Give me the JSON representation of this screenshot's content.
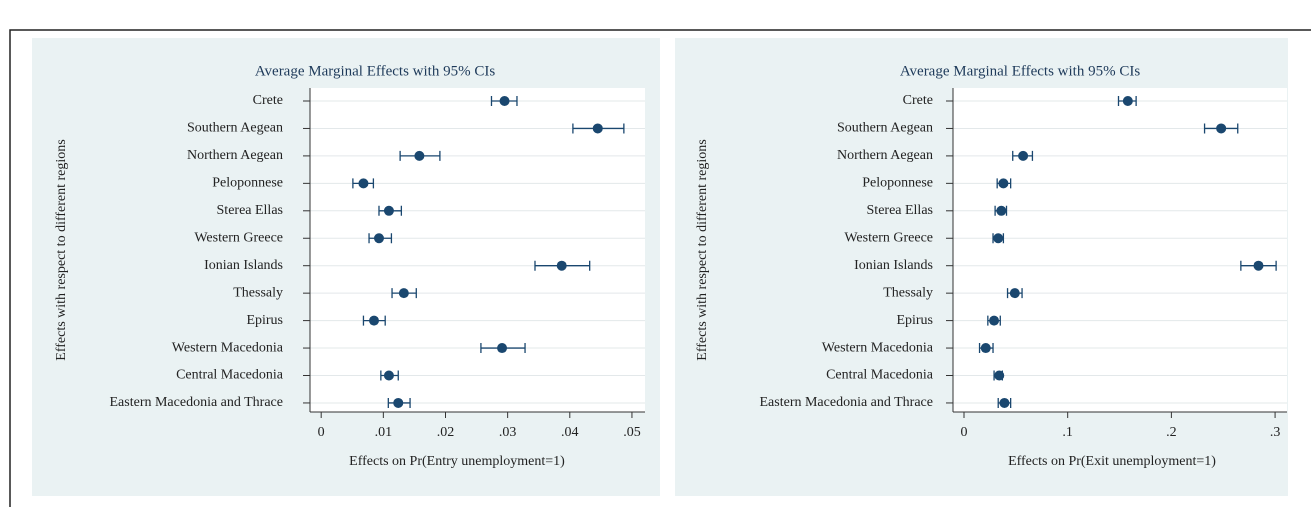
{
  "chart_data": [
    {
      "type": "errorbar",
      "title": "Average Marginal Effects with 95% CIs",
      "xlabel": "Effects on Pr(Entry unemployment=1)",
      "ylabel": "Effects with respect to different regions",
      "categories": [
        "Crete",
        "Southern Aegean",
        "Northern Aegean",
        "Peloponnese",
        "Sterea Ellas",
        "Western Greece",
        "Ionian Islands",
        "Thessaly",
        "Epirus",
        "Western Macedonia",
        "Central Macedonia",
        "Eastern Macedonia and Thrace"
      ],
      "values": [
        0.0295,
        0.0445,
        0.0158,
        0.0068,
        0.0109,
        0.0093,
        0.0387,
        0.0133,
        0.0085,
        0.0291,
        0.0109,
        0.0124
      ],
      "ci_low": [
        0.0274,
        0.0405,
        0.0127,
        0.0051,
        0.0093,
        0.0077,
        0.0344,
        0.0114,
        0.0068,
        0.0257,
        0.0096,
        0.0108
      ],
      "ci_high": [
        0.0315,
        0.0487,
        0.0191,
        0.0084,
        0.0129,
        0.0113,
        0.0432,
        0.0153,
        0.0103,
        0.0328,
        0.0124,
        0.0143
      ],
      "color": "#1a476f",
      "xlim": [
        -0.0018,
        0.0521
      ],
      "xticks": [
        0,
        {
          "value": 0.01,
          "label": ".01"
        },
        {
          "value": 0.02,
          "label": ".02"
        },
        {
          "value": 0.03,
          "label": ".03"
        },
        {
          "value": 0.04,
          "label": ".04"
        },
        {
          "value": 0.05,
          "label": ".05"
        }
      ],
      "grid": true
    },
    {
      "type": "errorbar",
      "title": "Average Marginal Effects with 95% CIs",
      "xlabel": "Effects on Pr(Exit unemployment=1)",
      "ylabel": "Effects with respect to different regions",
      "categories": [
        "Crete",
        "Southern Aegean",
        "Northern Aegean",
        "Peloponnese",
        "Sterea Ellas",
        "Western Greece",
        "Ionian Islands",
        "Thessaly",
        "Epirus",
        "Western Macedonia",
        "Central Macedonia",
        "Eastern Macedonia and Thrace"
      ],
      "values": [
        0.158,
        0.248,
        0.057,
        0.038,
        0.036,
        0.033,
        0.284,
        0.049,
        0.029,
        0.021,
        0.034,
        0.039
      ],
      "ci_low": [
        0.149,
        0.232,
        0.047,
        0.032,
        0.03,
        0.028,
        0.267,
        0.042,
        0.023,
        0.015,
        0.029,
        0.033
      ],
      "ci_high": [
        0.166,
        0.264,
        0.066,
        0.045,
        0.041,
        0.038,
        0.301,
        0.056,
        0.035,
        0.028,
        0.037,
        0.045
      ],
      "color": "#1a476f",
      "xlim": [
        -0.0106,
        0.3115
      ],
      "xticks": [
        0,
        {
          "value": 0.1,
          "label": ".1"
        },
        {
          "value": 0.2,
          "label": ".2"
        },
        {
          "value": 0.3,
          "label": ".3"
        }
      ],
      "grid": true
    }
  ]
}
